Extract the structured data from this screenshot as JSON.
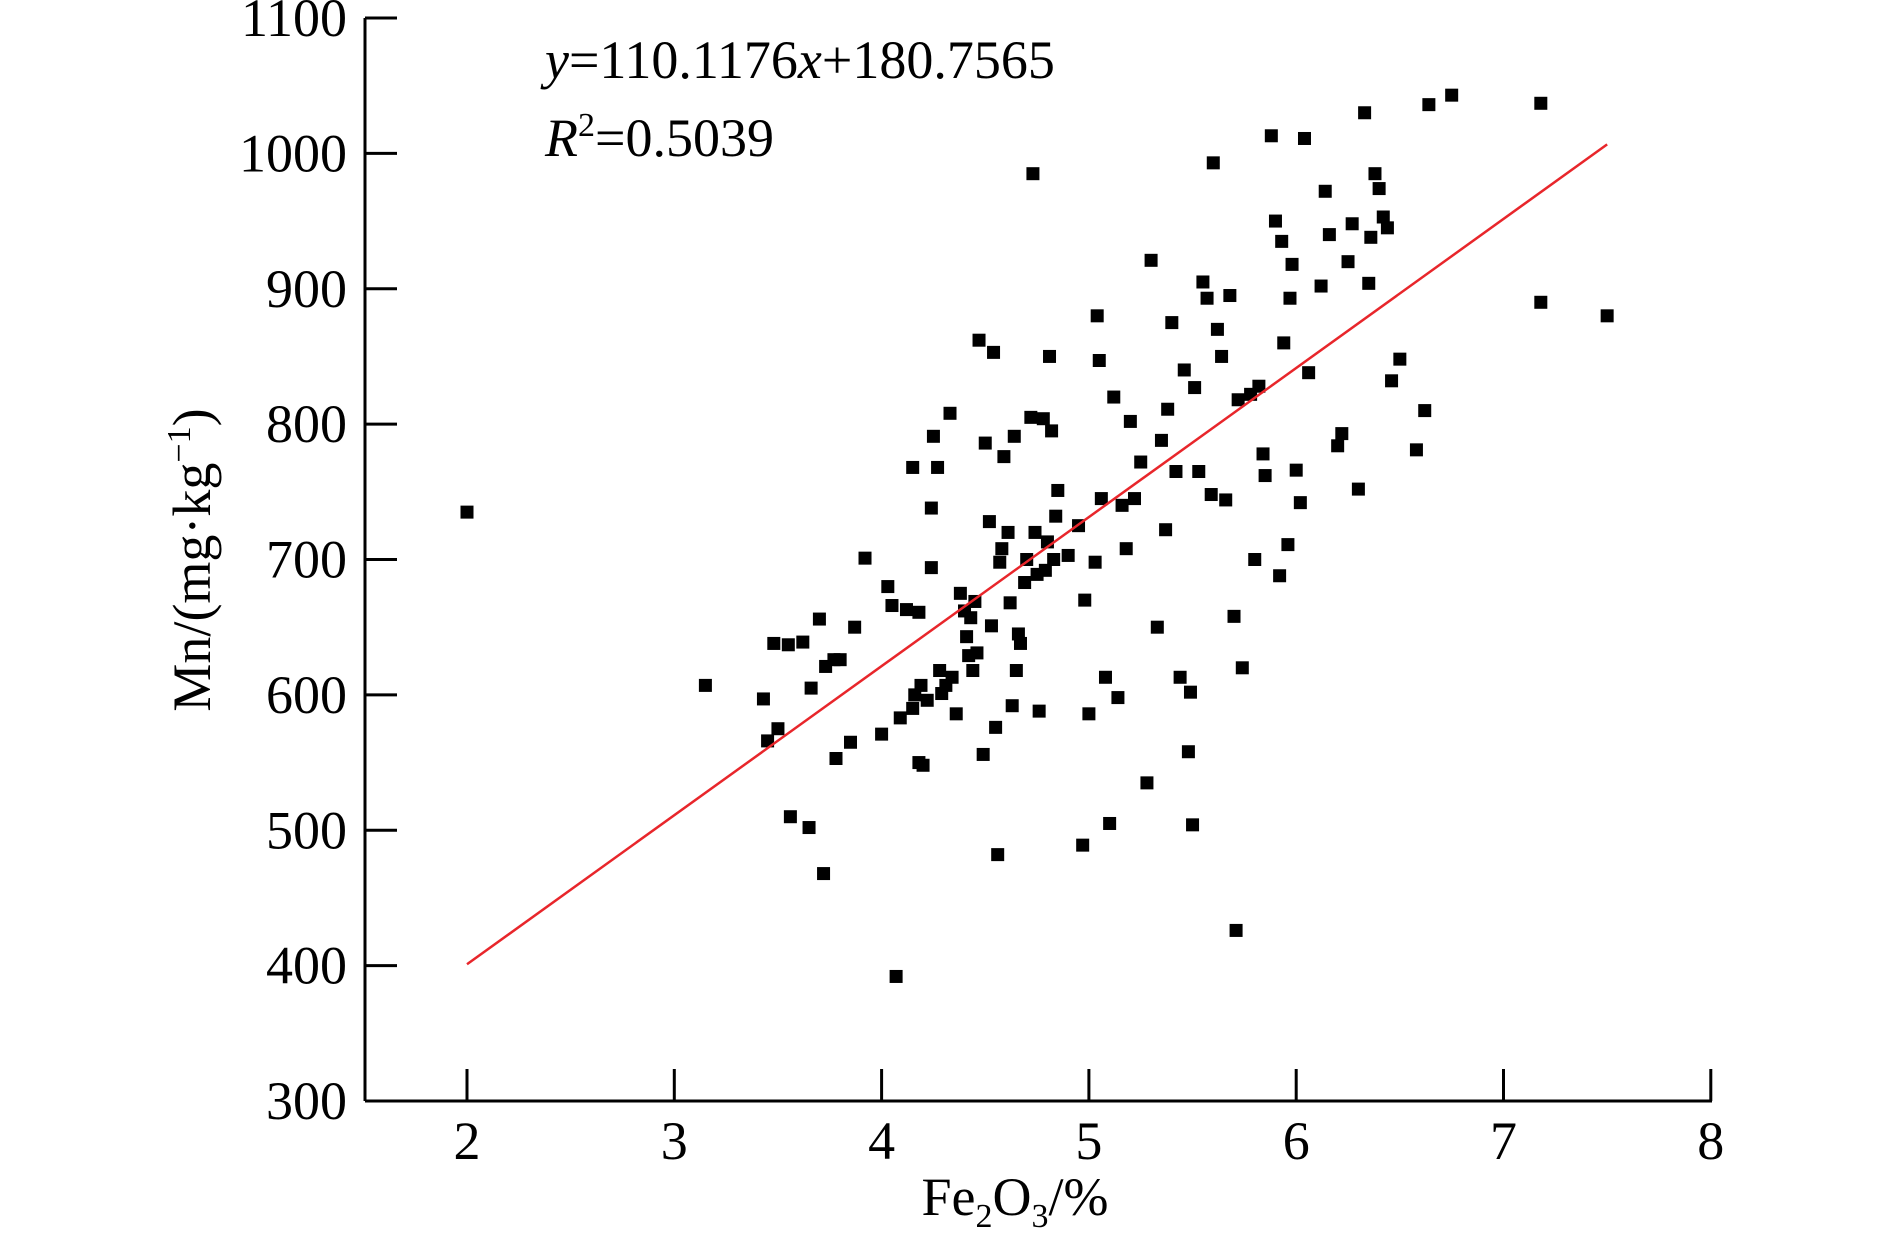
{
  "chart_data": {
    "type": "scatter",
    "x_axis": {
      "label_main": "Fe",
      "label_sub1": "2",
      "label_mid": "O",
      "label_sub2": "3",
      "label_tail": "/%",
      "range": [
        1.5,
        8
      ],
      "ticks": [
        2,
        3,
        4,
        5,
        6,
        7,
        8
      ],
      "tick_labels": [
        "2",
        "3",
        "4",
        "5",
        "6",
        "7",
        "8"
      ]
    },
    "y_axis": {
      "label_main": "Mn/(mg·kg",
      "label_sup": "−1",
      "label_tail": ")",
      "range": [
        300,
        1100
      ],
      "ticks": [
        300,
        400,
        500,
        600,
        700,
        800,
        900,
        1000,
        1100
      ],
      "tick_labels": [
        "300",
        "400",
        "500",
        "600",
        "700",
        "800",
        "900",
        "1000",
        "1100"
      ]
    },
    "grid": false,
    "annotation": {
      "eq_y": "y",
      "eq_mid": "=110.1176",
      "eq_x": "x",
      "eq_tail": "+180.7565",
      "r2_R": "R",
      "r2_sup": "2",
      "r2_tail": "=0.5039"
    },
    "trendline": {
      "slope": 110.1176,
      "intercept": 180.7565,
      "x_range": [
        2,
        7.5
      ],
      "color": "#e8262b"
    },
    "marker_color": "#000000",
    "points": [
      [
        2.0,
        735
      ],
      [
        3.15,
        607
      ],
      [
        3.43,
        597
      ],
      [
        3.45,
        566
      ],
      [
        3.48,
        638
      ],
      [
        3.5,
        575
      ],
      [
        3.55,
        637
      ],
      [
        3.56,
        510
      ],
      [
        3.62,
        639
      ],
      [
        3.65,
        502
      ],
      [
        3.66,
        605
      ],
      [
        3.7,
        656
      ],
      [
        3.72,
        468
      ],
      [
        3.73,
        621
      ],
      [
        3.77,
        626
      ],
      [
        3.78,
        553
      ],
      [
        3.8,
        626
      ],
      [
        3.85,
        565
      ],
      [
        3.87,
        650
      ],
      [
        3.92,
        701
      ],
      [
        4.0,
        571
      ],
      [
        4.03,
        680
      ],
      [
        4.05,
        666
      ],
      [
        4.07,
        392
      ],
      [
        4.09,
        583
      ],
      [
        4.12,
        663
      ],
      [
        4.15,
        590
      ],
      [
        4.15,
        768
      ],
      [
        4.16,
        600
      ],
      [
        4.18,
        661
      ],
      [
        4.18,
        550
      ],
      [
        4.19,
        607
      ],
      [
        4.2,
        548
      ],
      [
        4.22,
        596
      ],
      [
        4.24,
        694
      ],
      [
        4.24,
        738
      ],
      [
        4.25,
        791
      ],
      [
        4.27,
        768
      ],
      [
        4.28,
        618
      ],
      [
        4.29,
        601
      ],
      [
        4.31,
        607
      ],
      [
        4.33,
        808
      ],
      [
        4.34,
        613
      ],
      [
        4.36,
        586
      ],
      [
        4.38,
        675
      ],
      [
        4.4,
        662
      ],
      [
        4.41,
        643
      ],
      [
        4.42,
        629
      ],
      [
        4.43,
        657
      ],
      [
        4.44,
        618
      ],
      [
        4.45,
        669
      ],
      [
        4.46,
        631
      ],
      [
        4.47,
        862
      ],
      [
        4.49,
        556
      ],
      [
        4.5,
        786
      ],
      [
        4.52,
        728
      ],
      [
        4.53,
        651
      ],
      [
        4.54,
        853
      ],
      [
        4.55,
        576
      ],
      [
        4.56,
        482
      ],
      [
        4.57,
        698
      ],
      [
        4.58,
        708
      ],
      [
        4.59,
        776
      ],
      [
        4.61,
        720
      ],
      [
        4.62,
        668
      ],
      [
        4.63,
        592
      ],
      [
        4.64,
        791
      ],
      [
        4.65,
        618
      ],
      [
        4.66,
        645
      ],
      [
        4.67,
        638
      ],
      [
        4.69,
        683
      ],
      [
        4.7,
        700
      ],
      [
        4.72,
        805
      ],
      [
        4.73,
        985
      ],
      [
        4.74,
        720
      ],
      [
        4.75,
        689
      ],
      [
        4.76,
        588
      ],
      [
        4.78,
        804
      ],
      [
        4.79,
        692
      ],
      [
        4.8,
        713
      ],
      [
        4.81,
        850
      ],
      [
        4.82,
        795
      ],
      [
        4.83,
        700
      ],
      [
        4.84,
        732
      ],
      [
        4.85,
        751
      ],
      [
        4.9,
        703
      ],
      [
        4.95,
        725
      ],
      [
        4.97,
        489
      ],
      [
        4.98,
        670
      ],
      [
        5.0,
        586
      ],
      [
        5.03,
        698
      ],
      [
        5.04,
        880
      ],
      [
        5.05,
        847
      ],
      [
        5.06,
        745
      ],
      [
        5.08,
        613
      ],
      [
        5.1,
        505
      ],
      [
        5.12,
        820
      ],
      [
        5.14,
        598
      ],
      [
        5.16,
        740
      ],
      [
        5.18,
        708
      ],
      [
        5.2,
        802
      ],
      [
        5.22,
        745
      ],
      [
        5.25,
        772
      ],
      [
        5.28,
        535
      ],
      [
        5.3,
        921
      ],
      [
        5.33,
        650
      ],
      [
        5.35,
        788
      ],
      [
        5.37,
        722
      ],
      [
        5.38,
        811
      ],
      [
        5.4,
        875
      ],
      [
        5.42,
        765
      ],
      [
        5.44,
        613
      ],
      [
        5.46,
        840
      ],
      [
        5.48,
        558
      ],
      [
        5.49,
        602
      ],
      [
        5.5,
        504
      ],
      [
        5.51,
        827
      ],
      [
        5.53,
        765
      ],
      [
        5.55,
        905
      ],
      [
        5.57,
        893
      ],
      [
        5.59,
        748
      ],
      [
        5.6,
        993
      ],
      [
        5.62,
        870
      ],
      [
        5.64,
        850
      ],
      [
        5.66,
        744
      ],
      [
        5.68,
        895
      ],
      [
        5.7,
        658
      ],
      [
        5.71,
        426
      ],
      [
        5.72,
        818
      ],
      [
        5.74,
        620
      ],
      [
        5.78,
        822
      ],
      [
        5.8,
        700
      ],
      [
        5.82,
        828
      ],
      [
        5.84,
        778
      ],
      [
        5.85,
        762
      ],
      [
        5.88,
        1013
      ],
      [
        5.9,
        950
      ],
      [
        5.92,
        688
      ],
      [
        5.93,
        935
      ],
      [
        5.94,
        860
      ],
      [
        5.96,
        711
      ],
      [
        5.97,
        893
      ],
      [
        5.98,
        918
      ],
      [
        6.0,
        766
      ],
      [
        6.02,
        742
      ],
      [
        6.04,
        1011
      ],
      [
        6.06,
        838
      ],
      [
        6.12,
        902
      ],
      [
        6.14,
        972
      ],
      [
        6.16,
        940
      ],
      [
        6.2,
        784
      ],
      [
        6.22,
        793
      ],
      [
        6.25,
        920
      ],
      [
        6.27,
        948
      ],
      [
        6.3,
        752
      ],
      [
        6.33,
        1030
      ],
      [
        6.35,
        904
      ],
      [
        6.36,
        938
      ],
      [
        6.38,
        985
      ],
      [
        6.4,
        974
      ],
      [
        6.42,
        953
      ],
      [
        6.44,
        945
      ],
      [
        6.46,
        832
      ],
      [
        6.5,
        848
      ],
      [
        6.58,
        781
      ],
      [
        6.62,
        810
      ],
      [
        6.64,
        1036
      ],
      [
        6.75,
        1043
      ],
      [
        7.18,
        1037
      ],
      [
        7.18,
        890
      ],
      [
        7.5,
        880
      ]
    ]
  }
}
